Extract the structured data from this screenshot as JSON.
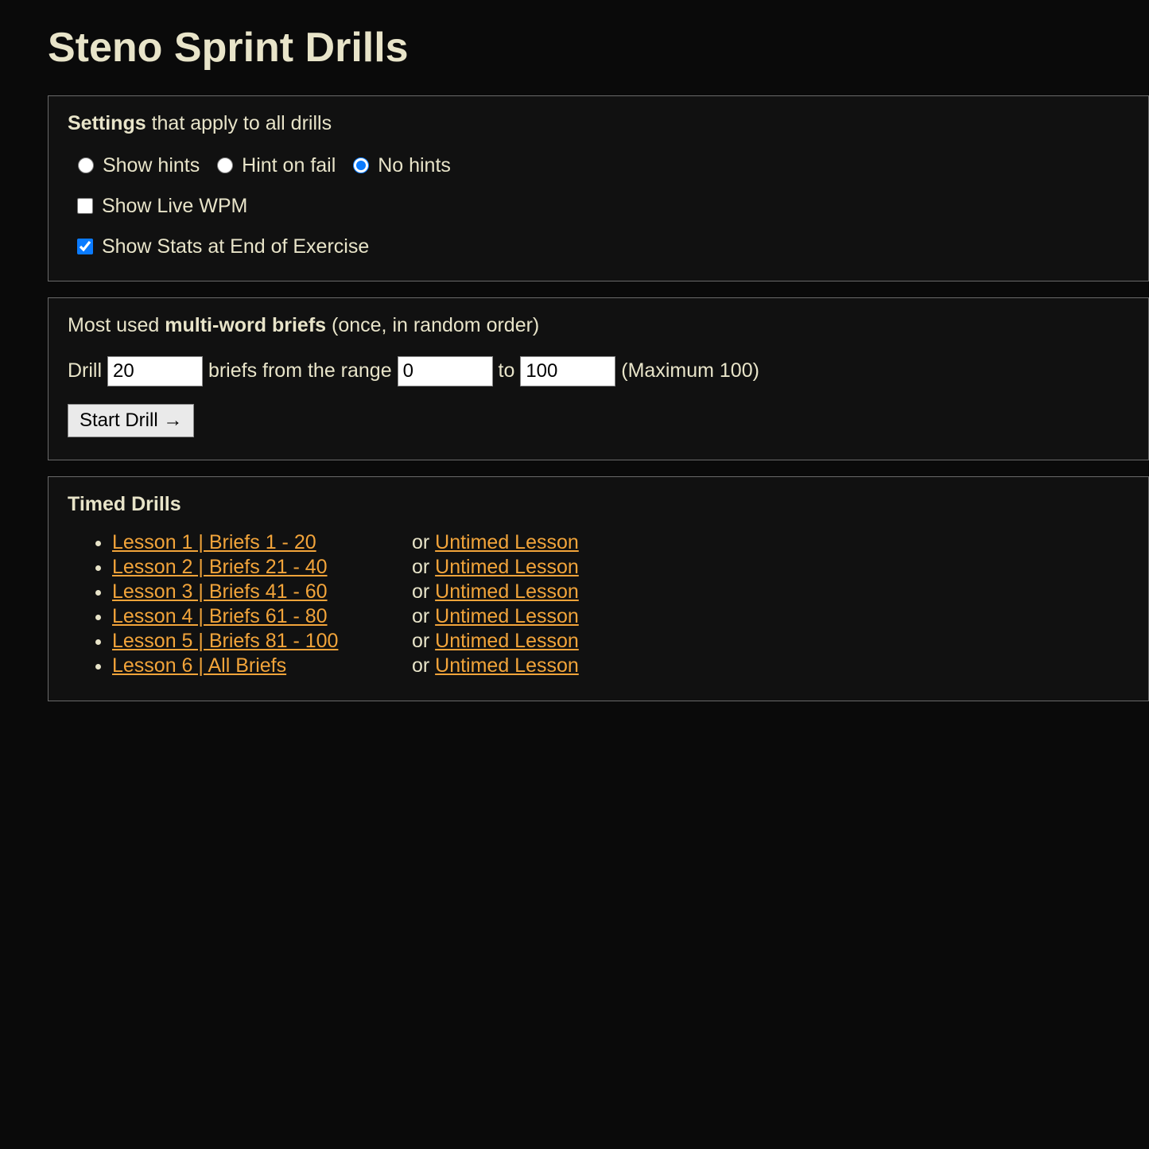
{
  "title": "Steno Sprint Drills",
  "colors": {
    "page_bg": "#0a0a0a",
    "panel_bg": "#111111",
    "panel_border": "#6a6a6a",
    "text": "#e8e4c9",
    "link": "#f2a43a",
    "accent_radio": "#0a7bff",
    "input_bg": "#ffffff",
    "input_fg": "#000000",
    "button_bg": "#eaeaea",
    "button_fg": "#000000"
  },
  "settings": {
    "legend_bold": "Settings",
    "legend_rest": " that apply to all drills",
    "hints": {
      "show": "Show hints",
      "on_fail": "Hint on fail",
      "none": "No hints",
      "selected": "none"
    },
    "show_live_wpm": {
      "label": "Show Live WPM",
      "checked": false
    },
    "show_stats": {
      "label": "Show Stats at End of Exercise",
      "checked": true
    }
  },
  "briefs": {
    "intro_pre": "Most used ",
    "intro_bold": "multi-word briefs",
    "intro_post": " (once, in random order)",
    "drill_label_pre": "Drill ",
    "drill_count": "20",
    "drill_label_mid": " briefs from the range ",
    "range_from": "0",
    "drill_label_to": " to ",
    "range_to": "100",
    "max_note": "  (Maximum 100)",
    "start_button": "Start Drill →"
  },
  "timed": {
    "title": "Timed Drills",
    "or": "or ",
    "untimed_label": "Untimed Lesson",
    "lessons": [
      {
        "label": "Lesson 1 | Briefs 1 - 20"
      },
      {
        "label": "Lesson 2 | Briefs 21 - 40"
      },
      {
        "label": "Lesson 3 | Briefs 41 - 60"
      },
      {
        "label": "Lesson 4 | Briefs 61 - 80"
      },
      {
        "label": "Lesson 5 | Briefs 81 - 100"
      },
      {
        "label": "Lesson 6 | All Briefs"
      }
    ]
  }
}
